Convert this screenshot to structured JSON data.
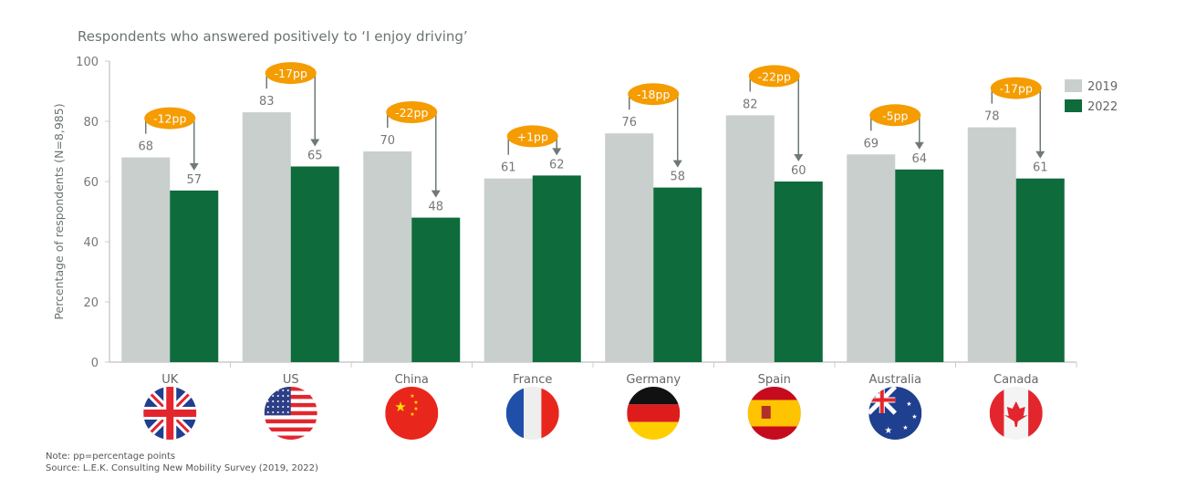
{
  "chart_data": {
    "type": "bar",
    "title": "Respondents who answered positively to ‘I enjoy driving’",
    "ylabel": "Percentage of respondents (N=8,985)",
    "xlabel": "",
    "ylim": [
      0,
      100
    ],
    "yticks": [
      0,
      20,
      40,
      60,
      80,
      100
    ],
    "grid": false,
    "legend_position": "right",
    "categories": [
      "UK",
      "US",
      "China",
      "France",
      "Germany",
      "Spain",
      "Australia",
      "Canada"
    ],
    "flags": [
      "uk-flag-icon",
      "us-flag-icon",
      "china-flag-icon",
      "france-flag-icon",
      "germany-flag-icon",
      "spain-flag-icon",
      "australia-flag-icon",
      "canada-flag-icon"
    ],
    "series": [
      {
        "name": "2019",
        "color": "#c8cfcc",
        "values": [
          68,
          83,
          70,
          61,
          76,
          82,
          69,
          78
        ]
      },
      {
        "name": "2022",
        "color": "#0e6b3b",
        "values": [
          57,
          65,
          48,
          62,
          58,
          60,
          64,
          61
        ]
      }
    ],
    "change_labels": [
      "-12pp",
      "-17pp",
      "-22pp",
      "+1pp",
      "-18pp",
      "-22pp",
      "-5pp",
      "-17pp"
    ],
    "badge_color": "#f59c00"
  },
  "notes": {
    "note": "Note: pp=percentage points",
    "source": "Source: L.E.K. Consulting New Mobility Survey (2019, 2022)"
  }
}
